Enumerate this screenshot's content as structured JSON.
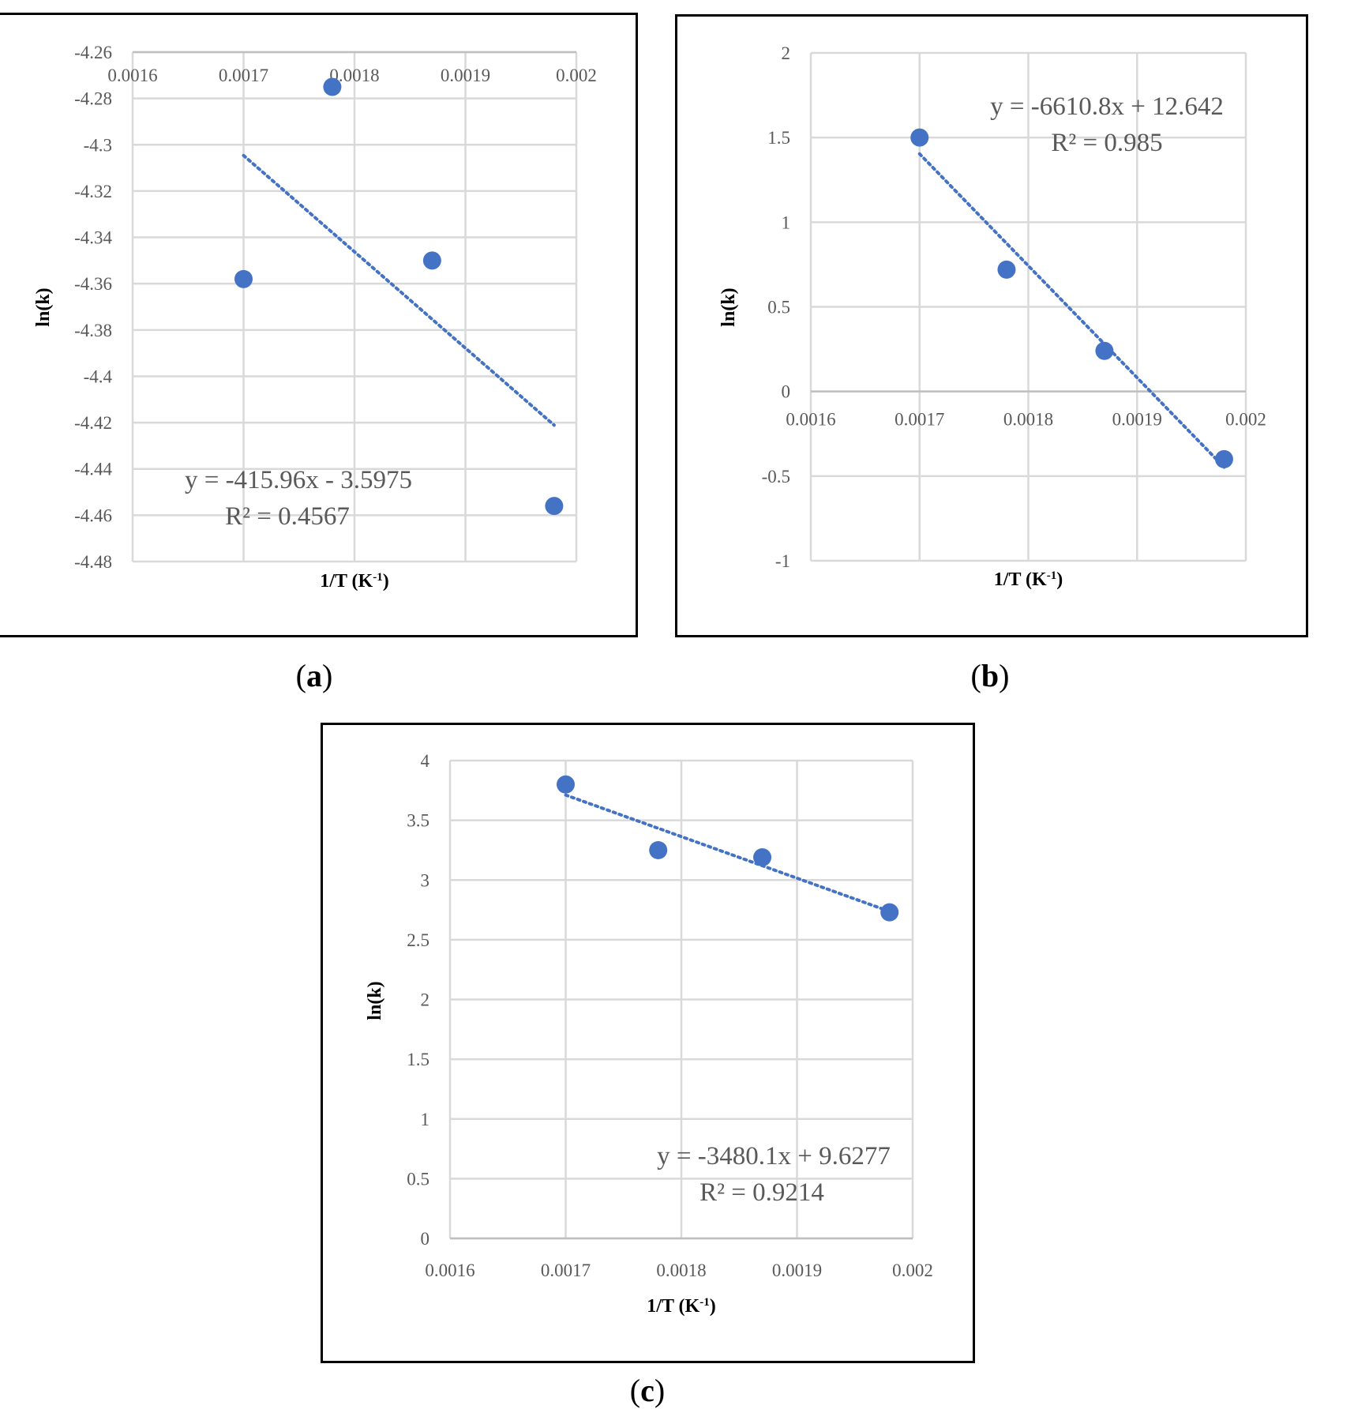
{
  "colors": {
    "series": "#4472C4",
    "grid": "#d9d9d9",
    "text": "#595959",
    "frame": "#000000"
  },
  "chart_data": [
    {
      "panel": "a",
      "type": "scatter",
      "caption": "a",
      "xlabel": "1/T (K",
      "xlabel_sup": "-1",
      "xlabel_end": ")",
      "ylabel": "ln(k)",
      "xlim": [
        0.0016,
        0.002
      ],
      "ylim": [
        -4.48,
        -4.26
      ],
      "x_axis_at_top": true,
      "x_ticks": [
        0.0016,
        0.0017,
        0.0018,
        0.0019,
        0.002
      ],
      "x_tick_labels": [
        "0.0016",
        "0.0017",
        "0.0018",
        "0.0019",
        "0.002"
      ],
      "y_ticks": [
        -4.26,
        -4.28,
        -4.3,
        -4.32,
        -4.34,
        -4.36,
        -4.38,
        -4.4,
        -4.42,
        -4.44,
        -4.46,
        -4.48
      ],
      "y_tick_labels": [
        "-4.26",
        "-4.28",
        "-4.3",
        "-4.32",
        "-4.34",
        "-4.36",
        "-4.38",
        "-4.4",
        "-4.42",
        "-4.44",
        "-4.46",
        "-4.48"
      ],
      "series": [
        {
          "x": [
            0.0017,
            0.00178,
            0.00187,
            0.00198
          ],
          "y": [
            -4.358,
            -4.275,
            -4.35,
            -4.456
          ]
        }
      ],
      "trendline": {
        "slope": -415.96,
        "intercept": -3.5975,
        "x_range": [
          0.0017,
          0.00198
        ]
      },
      "equation": "y = -415.96x - 3.5975",
      "r2": "R² = 0.4567",
      "grid": true
    },
    {
      "panel": "b",
      "type": "scatter",
      "caption": "b",
      "xlabel": "1/T (K",
      "xlabel_sup": "-1",
      "xlabel_end": ")",
      "ylabel": "ln(k)",
      "xlim": [
        0.0016,
        0.002
      ],
      "ylim": [
        -1,
        2
      ],
      "x_axis_at_zero": true,
      "x_ticks": [
        0.0016,
        0.0017,
        0.0018,
        0.0019,
        0.002
      ],
      "x_tick_labels": [
        "0.0016",
        "0.0017",
        "0.0018",
        "0.0019",
        "0.002"
      ],
      "y_ticks": [
        2,
        1.5,
        1,
        0.5,
        0,
        -0.5,
        -1
      ],
      "y_tick_labels": [
        "2",
        "1.5",
        "1",
        "0.5",
        "0",
        "-0.5",
        "-1"
      ],
      "series": [
        {
          "x": [
            0.0017,
            0.00178,
            0.00187,
            0.00198
          ],
          "y": [
            1.5,
            0.72,
            0.24,
            -0.4
          ]
        }
      ],
      "trendline": {
        "slope": -6610.8,
        "intercept": 12.642,
        "x_range": [
          0.0017,
          0.00198
        ]
      },
      "equation": "y = -6610.8x + 12.642",
      "r2": "R² = 0.985",
      "grid": true
    },
    {
      "panel": "c",
      "type": "scatter",
      "caption": "c",
      "xlabel": "1/T (K",
      "xlabel_sup": "-1",
      "xlabel_end": ")",
      "ylabel": "ln(k)",
      "xlim": [
        0.0016,
        0.002
      ],
      "ylim": [
        0,
        4
      ],
      "x_ticks": [
        0.0016,
        0.0017,
        0.0018,
        0.0019,
        0.002
      ],
      "x_tick_labels": [
        "0.0016",
        "0.0017",
        "0.0018",
        "0.0019",
        "0.002"
      ],
      "y_ticks": [
        4,
        3.5,
        3,
        2.5,
        2,
        1.5,
        1,
        0.5,
        0
      ],
      "y_tick_labels": [
        "4",
        "3.5",
        "3",
        "2.5",
        "2",
        "1.5",
        "1",
        "0.5",
        "0"
      ],
      "series": [
        {
          "x": [
            0.0017,
            0.00178,
            0.00187,
            0.00198
          ],
          "y": [
            3.8,
            3.25,
            3.19,
            2.73
          ]
        }
      ],
      "trendline": {
        "slope": -3480.1,
        "intercept": 9.6277,
        "x_range": [
          0.0017,
          0.00198
        ]
      },
      "equation": "y = -3480.1x + 9.6277",
      "r2": "R² = 0.9214",
      "grid": true
    }
  ]
}
